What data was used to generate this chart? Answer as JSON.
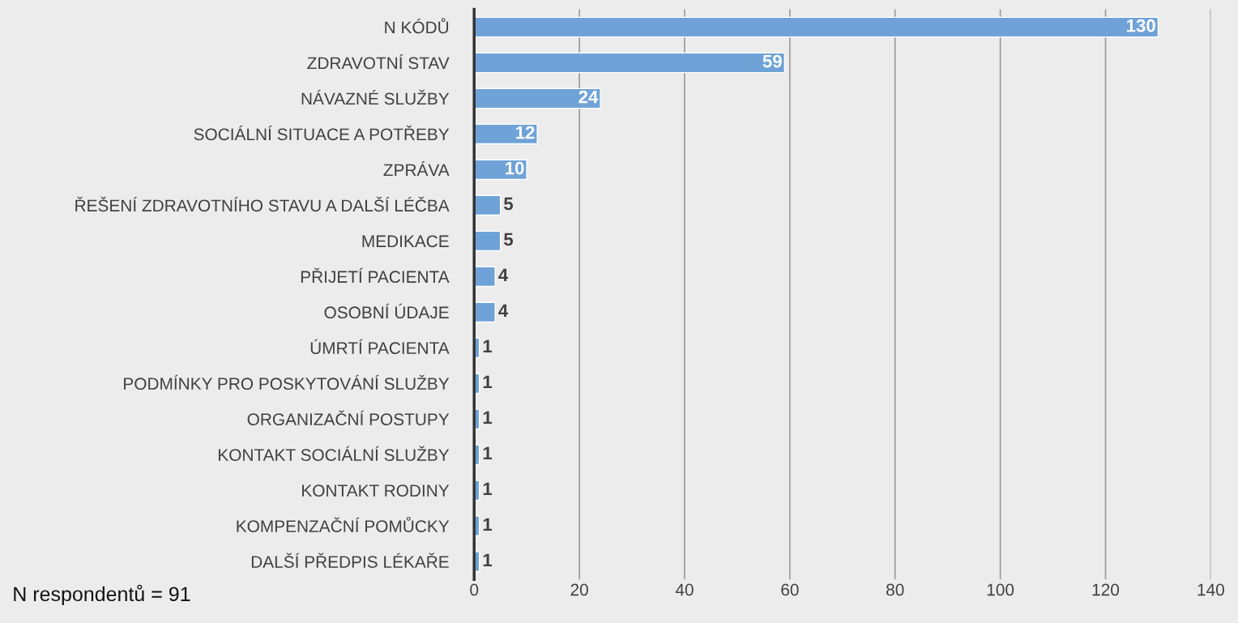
{
  "chart_data": {
    "type": "bar",
    "orientation": "horizontal",
    "categories": [
      "N KÓDŮ",
      "ZDRAVOTNÍ STAV",
      "NÁVAZNÉ SLUŽBY",
      "SOCIÁLNÍ SITUACE A POTŘEBY",
      "ZPRÁVA",
      "ŘEŠENÍ ZDRAVOTNÍHO STAVU A DALŠÍ LÉČBA",
      "MEDIKACE",
      "PŘIJETÍ PACIENTA",
      "OSOBNÍ ÚDAJE",
      "ÚMRTÍ PACIENTA",
      "PODMÍNKY PRO POSKYTOVÁNÍ SLUŽBY",
      "ORGANIZAČNÍ POSTUPY",
      "KONTAKT SOCIÁLNÍ SLUŽBY",
      "KONTAKT RODINY",
      "KOMPENZAČNÍ POMŮCKY",
      "DALŠÍ PŘEDPIS LÉKAŘE"
    ],
    "values": [
      130,
      59,
      24,
      12,
      10,
      5,
      5,
      4,
      4,
      1,
      1,
      1,
      1,
      1,
      1,
      1
    ],
    "color": "#6fa3d8",
    "xlim": [
      0,
      140
    ],
    "xticks": [
      0,
      20,
      40,
      60,
      80,
      100,
      120,
      140
    ],
    "grid": "x",
    "data_labels": true,
    "annotations": [
      "N respondentů = 91"
    ]
  }
}
